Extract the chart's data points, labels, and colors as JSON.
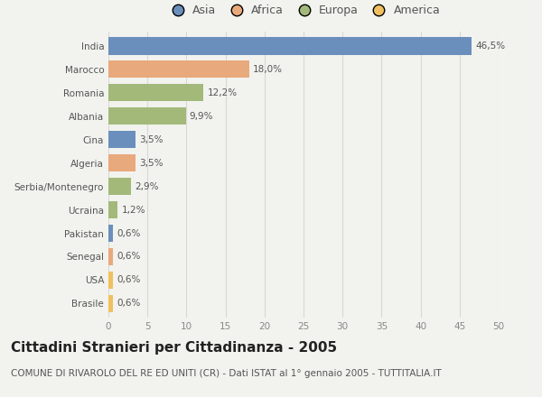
{
  "categories": [
    "India",
    "Marocco",
    "Romania",
    "Albania",
    "Cina",
    "Algeria",
    "Serbia/Montenegro",
    "Ucraina",
    "Pakistan",
    "Senegal",
    "USA",
    "Brasile"
  ],
  "values": [
    46.5,
    18.0,
    12.2,
    9.9,
    3.5,
    3.5,
    2.9,
    1.2,
    0.6,
    0.6,
    0.6,
    0.6
  ],
  "labels": [
    "46,5%",
    "18,0%",
    "12,2%",
    "9,9%",
    "3,5%",
    "3,5%",
    "2,9%",
    "1,2%",
    "0,6%",
    "0,6%",
    "0,6%",
    "0,6%"
  ],
  "colors": [
    "#6b8fbc",
    "#e8a97c",
    "#a3b97a",
    "#a3b97a",
    "#6b8fbc",
    "#e8a97c",
    "#a3b97a",
    "#a3b97a",
    "#6b8fbc",
    "#e8a97c",
    "#f0c060",
    "#f0c060"
  ],
  "legend_labels": [
    "Asia",
    "Africa",
    "Europa",
    "America"
  ],
  "legend_colors": [
    "#6b8fbc",
    "#e8a97c",
    "#a3b97a",
    "#f0c060"
  ],
  "xlim": [
    0,
    50
  ],
  "xticks": [
    0,
    5,
    10,
    15,
    20,
    25,
    30,
    35,
    40,
    45,
    50
  ],
  "title": "Cittadini Stranieri per Cittadinanza - 2005",
  "subtitle": "COMUNE DI RIVAROLO DEL RE ED UNITI (CR) - Dati ISTAT al 1° gennaio 2005 - TUTTITALIA.IT",
  "background_color": "#f2f2ee",
  "bar_height": 0.75,
  "title_fontsize": 11,
  "subtitle_fontsize": 7.5,
  "label_fontsize": 7.5,
  "tick_fontsize": 7.5,
  "legend_fontsize": 9
}
